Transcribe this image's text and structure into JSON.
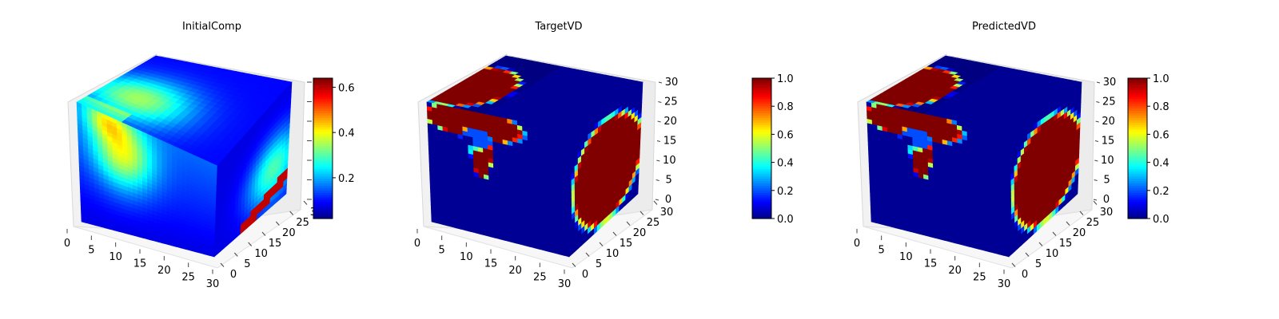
{
  "chart_data": [
    {
      "type": "heatmap",
      "title": "InitialComp",
      "x_ticks": [
        "0",
        "5",
        "10",
        "15",
        "20",
        "25",
        "30"
      ],
      "y_ticks": [
        "0",
        "5",
        "10",
        "15",
        "20",
        "25",
        "30"
      ],
      "z_ticks": [],
      "colorbar": {
        "range": [
          0.02,
          0.64
        ],
        "ticks": [
          "0.2",
          "0.4",
          "0.6"
        ],
        "colormap": "jet"
      }
    },
    {
      "type": "heatmap",
      "title": "TargetVD",
      "x_ticks": [
        "0",
        "5",
        "10",
        "15",
        "20",
        "25",
        "30"
      ],
      "y_ticks": [
        "0",
        "5",
        "10",
        "15",
        "20",
        "25",
        "30"
      ],
      "z_ticks": [
        "0",
        "5",
        "10",
        "15",
        "20",
        "25",
        "30"
      ],
      "colorbar": {
        "range": [
          0,
          1
        ],
        "ticks": [
          "0.0",
          "0.2",
          "0.4",
          "0.6",
          "0.8",
          "1.0"
        ],
        "colormap": "jet"
      }
    },
    {
      "type": "heatmap",
      "title": "PredictedVD",
      "x_ticks": [
        "0",
        "5",
        "10",
        "15",
        "20",
        "25",
        "30"
      ],
      "y_ticks": [
        "0",
        "5",
        "10",
        "15",
        "20",
        "25",
        "30"
      ],
      "z_ticks": [
        "0",
        "5",
        "10",
        "15",
        "20",
        "25",
        "30"
      ],
      "colorbar": {
        "range": [
          0,
          1
        ],
        "ticks": [
          "0.0",
          "0.2",
          "0.4",
          "0.6",
          "0.8",
          "1.0"
        ],
        "colormap": "jet"
      }
    }
  ]
}
